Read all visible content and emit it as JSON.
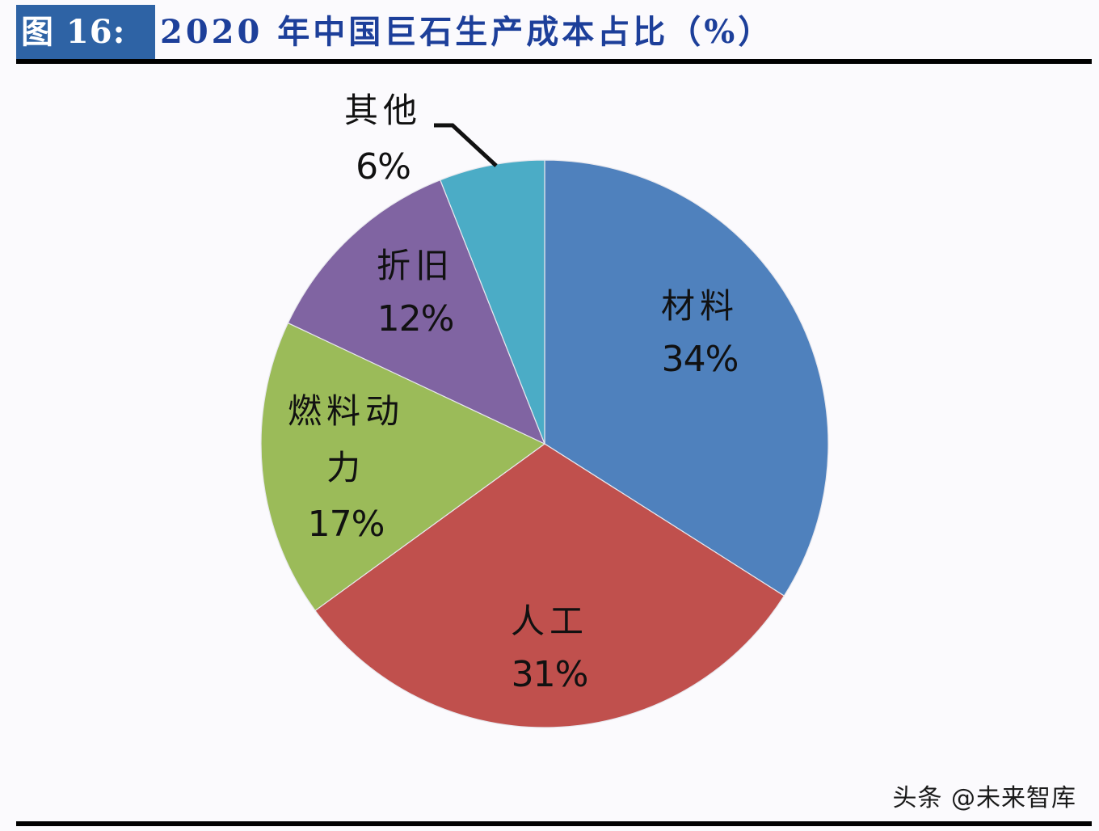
{
  "header": {
    "figure_label": "图 16:",
    "title": "2020 年中国巨石生产成本占比（%）",
    "label_bg_color": "#2e63a5",
    "title_color": "#1d3f9a"
  },
  "watermark": "头条 @未来智库",
  "chart_data": {
    "type": "pie",
    "title": "2020 年中国巨石生产成本占比（%）",
    "start_angle_deg": 0,
    "direction": "clockwise",
    "legend": "none (data labels on slices)",
    "categories": [
      "材料",
      "人工",
      "燃料动力",
      "折旧",
      "其他"
    ],
    "values": [
      34,
      31,
      17,
      12,
      6
    ],
    "unit": "%",
    "colors": [
      "#4f81bd",
      "#c0504d",
      "#9bbb59",
      "#8064a2",
      "#4bacc6"
    ],
    "labels": [
      {
        "name": "材料",
        "pct": "34%"
      },
      {
        "name": "人工",
        "pct": "31%"
      },
      {
        "name": "燃料动力",
        "pct": "17%"
      },
      {
        "name": "折旧",
        "pct": "12%"
      },
      {
        "name": "其他",
        "pct": "6%"
      }
    ]
  }
}
